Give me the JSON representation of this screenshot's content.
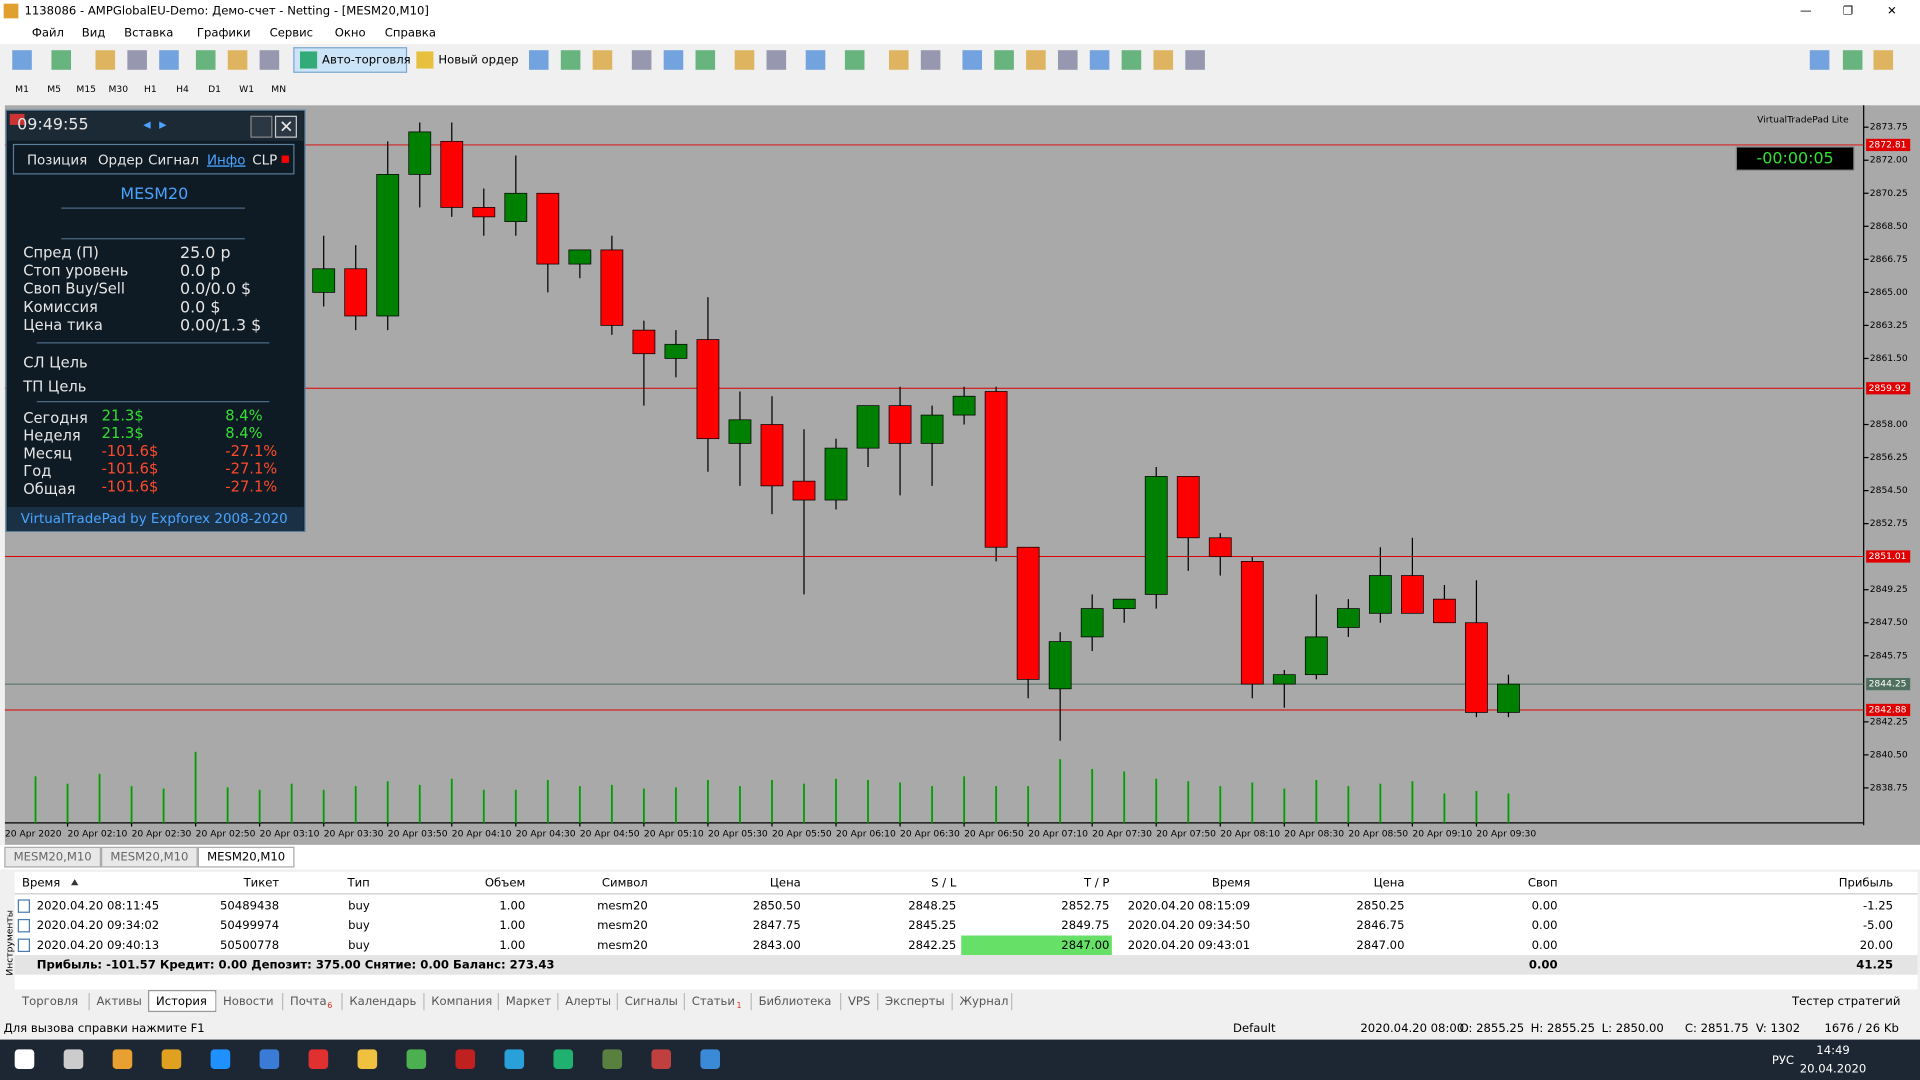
{
  "window": {
    "title": "1138086 - AMPGlobalEU-Demo: Демо-счет - Netting - [MESM20,M10]"
  },
  "menu": [
    "Файл",
    "Вид",
    "Вставка",
    "Графики",
    "Сервис",
    "Окно",
    "Справка"
  ],
  "toolbar": {
    "auto_trading": "Авто-торговля",
    "new_order": "Новый ордер"
  },
  "timeframes": [
    "M1",
    "M5",
    "M15",
    "M30",
    "H1",
    "H4",
    "D1",
    "W1",
    "MN"
  ],
  "chart_data": {
    "type": "candlestick",
    "background": "#a9a9a9",
    "up_color": "#008000",
    "down_color": "#ff0000",
    "x_start_label": "20 Apr 2020",
    "categories": [
      null,
      "20 Apr 02:10",
      null,
      "20 Apr 02:30",
      null,
      "20 Apr 02:50",
      null,
      "20 Apr 03:10",
      null,
      "20 Apr 03:30",
      null,
      "20 Apr 03:50",
      null,
      "20 Apr 04:10",
      null,
      "20 Apr 04:30",
      null,
      "20 Apr 04:50",
      null,
      "20 Apr 05:10",
      null,
      "20 Apr 05:30",
      null,
      "20 Apr 05:50",
      null,
      "20 Apr 06:10",
      null,
      "20 Apr 06:30",
      null,
      "20 Apr 06:50",
      null,
      "20 Apr 07:10",
      null,
      "20 Apr 07:30",
      null,
      "20 Apr 07:50",
      null,
      "20 Apr 08:10",
      null,
      "20 Apr 08:30",
      null,
      "20 Apr 08:50",
      null,
      "20 Apr 09:10",
      null,
      "20 Apr 09:30",
      null
    ],
    "open": [
      null,
      null,
      null,
      null,
      null,
      null,
      null,
      null,
      null,
      2865.0,
      2866.25,
      2863.75,
      2871.25,
      2873.0,
      2869.5,
      2868.75,
      2870.25,
      2866.5,
      2867.25,
      2863.0,
      2861.5,
      2862.5,
      2857.0,
      2858.0,
      2855.0,
      2854.0,
      2856.75,
      2859.0,
      2857.0,
      2858.5,
      2859.75,
      2851.5,
      2844.0,
      2846.75,
      2848.25,
      2849.0,
      2855.25,
      2852.0,
      2850.75,
      2844.25,
      2844.75,
      2847.25,
      2848.0,
      2850.0,
      2848.75,
      2847.5,
      2842.75
    ],
    "high": [
      null,
      null,
      null,
      null,
      null,
      null,
      null,
      null,
      null,
      2868.0,
      2867.5,
      2873.0,
      2874.0,
      2874.0,
      2870.5,
      2872.25,
      2870.25,
      2867.25,
      2868.0,
      2863.5,
      2863.0,
      2864.75,
      2859.75,
      2859.5,
      2857.75,
      2857.25,
      2859.0,
      2860.0,
      2859.0,
      2860.0,
      2860.0,
      2851.5,
      2847.0,
      2849.0,
      2848.75,
      2855.75,
      2855.25,
      2852.25,
      2851.0,
      2845.0,
      2849.0,
      2848.75,
      2851.5,
      2852.0,
      2849.5,
      2849.75,
      2844.75
    ],
    "low": [
      null,
      null,
      null,
      null,
      null,
      null,
      null,
      null,
      null,
      2864.25,
      2863.0,
      2863.0,
      2869.5,
      2869.0,
      2868.0,
      2868.0,
      2865.0,
      2865.75,
      2862.75,
      2859.0,
      2860.5,
      2855.5,
      2854.75,
      2853.25,
      2849.0,
      2853.5,
      2855.75,
      2854.25,
      2854.75,
      2858.0,
      2850.75,
      2843.5,
      2841.25,
      2846.0,
      2847.5,
      2848.25,
      2850.25,
      2850.0,
      2843.5,
      2843.0,
      2844.5,
      2846.75,
      2847.5,
      2848.0,
      2847.5,
      2842.5,
      2842.5
    ],
    "close": [
      null,
      null,
      null,
      null,
      null,
      null,
      null,
      null,
      null,
      2866.25,
      2863.75,
      2871.25,
      2873.5,
      2869.5,
      2869.0,
      2870.25,
      2866.5,
      2867.25,
      2863.25,
      2861.75,
      2862.25,
      2857.25,
      2858.25,
      2854.75,
      2854.0,
      2856.75,
      2859.0,
      2857.0,
      2858.5,
      2859.5,
      2851.5,
      2844.5,
      2846.5,
      2848.25,
      2848.75,
      2855.25,
      2852.0,
      2851.0,
      2844.25,
      2844.75,
      2846.75,
      2848.25,
      2850.0,
      2848.0,
      2847.5,
      2842.75,
      2844.25
    ],
    "volume": [
      38,
      32,
      40,
      30,
      28,
      58,
      29,
      27,
      32,
      27,
      30,
      34,
      31,
      36,
      27,
      27,
      35,
      30,
      31,
      28,
      29,
      35,
      30,
      35,
      32,
      36,
      35,
      33,
      30,
      38,
      30,
      30,
      52,
      44,
      42,
      36,
      34,
      30,
      33,
      28,
      35,
      30,
      32,
      34,
      24,
      26,
      24
    ],
    "vlim": [
      0,
      120
    ],
    "ylim": [
      2836.9,
      2874.65
    ],
    "yticks": [
      2873.75,
      {
        "value": 2872,
        "label": "2872.00"
      },
      2870.25,
      {
        "value": 2868.5,
        "label": "2868.50"
      },
      2866.75,
      {
        "value": 2865,
        "label": "2865.00"
      },
      2863.25,
      {
        "value": 2861.5,
        "label": "2861.50"
      },
      {
        "value": 2858,
        "label": "2858.00"
      },
      2856.25,
      {
        "value": 2854.5,
        "label": "2854.50"
      },
      2852.75,
      2849.25,
      {
        "value": 2847.5,
        "label": "2847.50"
      },
      2845.75,
      2842.25,
      {
        "value": 2840.5,
        "label": "2840.50"
      },
      2838.75
    ],
    "levels": [
      {
        "price": 2872.81,
        "color": "#e00000"
      },
      {
        "price": 2859.92,
        "color": "#e00000"
      },
      {
        "price": 2851.01,
        "color": "#e00000"
      },
      {
        "price": 2844.25,
        "color": "#4f6f5f"
      },
      {
        "price": 2842.88,
        "color": "#e00000"
      }
    ],
    "indicator_label": "VirtualTradePad Lite",
    "timer": "-00:00:05"
  },
  "panel": {
    "time": "09:49:55",
    "tabs": [
      "Позиция",
      "Ордер",
      "Сигнал",
      "Инфо",
      "CLP"
    ],
    "symbol": "MESM20",
    "info": [
      [
        "Спред (П)",
        "25.0 p"
      ],
      [
        "Стоп уровень",
        "0.0 p"
      ],
      [
        "Своп Buy/Sell",
        "0.0/0.0 $"
      ],
      [
        "Комиссия",
        "0.0 $"
      ],
      [
        "Цена тика",
        "0.00/1.3 $"
      ]
    ],
    "targets": [
      "СЛ Цель",
      "ТП Цель"
    ],
    "stats": [
      {
        "label": "Сегодня",
        "money": "21.3$",
        "percent": "8.4%",
        "color": "#33e033"
      },
      {
        "label": "Неделя",
        "money": "21.3$",
        "percent": "8.4%",
        "color": "#33e033"
      },
      {
        "label": "Месяц",
        "money": "-101.6$",
        "percent": "-27.1%",
        "color": "#ff4a2a"
      },
      {
        "label": "Год",
        "money": "-101.6$",
        "percent": "-27.1%",
        "color": "#ff4a2a"
      },
      {
        "label": "Общая",
        "money": "-101.6$",
        "percent": "-27.1%",
        "color": "#ff4a2a"
      }
    ],
    "footer": "VirtualTradePad by Expforex 2008-2020"
  },
  "chart_tabs": [
    "MESM20,M10",
    "MESM20,M10",
    "MESM20,M10"
  ],
  "table": {
    "header": [
      "Время",
      "Тикет",
      "Тип",
      "Объем",
      "Символ",
      "Цена",
      "S / L",
      "T / P",
      "Время",
      "Цена",
      "Своп",
      "Прибыль"
    ],
    "rows": [
      [
        "2020.04.20 08:11:45",
        "50489438",
        "buy",
        "1.00",
        "mesm20",
        "2850.50",
        "2848.25",
        "2852.75",
        "2020.04.20 08:15:09",
        "2850.25",
        "0.00",
        "-1.25"
      ],
      [
        "2020.04.20 09:34:02",
        "50499974",
        "buy",
        "1.00",
        "mesm20",
        "2847.75",
        "2845.25",
        "2849.75",
        "2020.04.20 09:34:50",
        "2846.75",
        "0.00",
        "-5.00"
      ],
      [
        "2020.04.20 09:40:13",
        "50500778",
        "buy",
        "1.00",
        "mesm20",
        "2843.00",
        "2842.25",
        "2847.00",
        "2020.04.20 09:43:01",
        "2847.00",
        "0.00",
        "20.00"
      ]
    ],
    "summary": {
      "text": "Прибыль: -101.57  Кредит: 0.00  Депозит: 375.00  Снятие: 0.00  Баланс: 273.43",
      "swap": "0.00",
      "profit": "41.25"
    }
  },
  "side_label": "Инструменты",
  "bottom_tabs": [
    {
      "label": "Торговля"
    },
    {
      "label": "Активы"
    },
    {
      "label": "История"
    },
    {
      "label": "Новости"
    },
    {
      "label": "Почта",
      "badge": "6"
    },
    {
      "label": "Календарь"
    },
    {
      "label": "Компания"
    },
    {
      "label": "Маркет"
    },
    {
      "label": "Алерты"
    },
    {
      "label": "Сигналы"
    },
    {
      "label": "Статьи",
      "badge": "1"
    },
    {
      "label": "Библиотека"
    },
    {
      "label": "VPS"
    },
    {
      "label": "Эксперты"
    },
    {
      "label": "Журнал"
    }
  ],
  "tester": "Тестер стратегий",
  "status_bar": {
    "help": "Для вызова справки нажмите F1",
    "items": [
      "Default",
      "2020.04.20 08:00",
      "O: 2855.25",
      "H: 2855.25",
      "L: 2850.00",
      "C: 2851.75",
      "V: 1302",
      "1676 / 26 Kb"
    ]
  },
  "taskbar": {
    "lang": "РУС",
    "time": "14:49",
    "date": "20.04.2020"
  }
}
